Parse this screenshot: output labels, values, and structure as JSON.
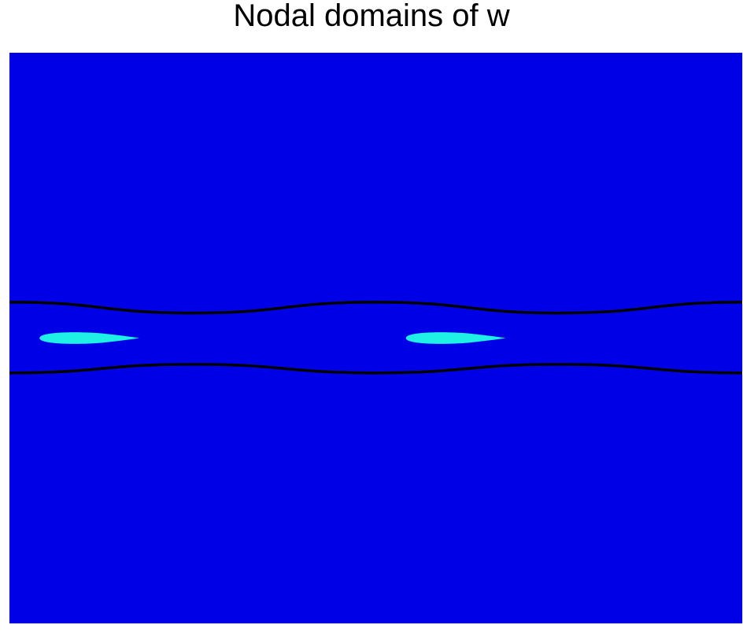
{
  "chart_data": {
    "type": "heatmap",
    "title": "Nodal domains of w",
    "xlabel": "",
    "ylabel": "",
    "axes_visible": false,
    "colors": {
      "background_domain": "#0000e6",
      "blob_domain": "#1ef0e6",
      "nodal_line": "#000000"
    },
    "nodal_lines": [
      {
        "name": "",
        "points": [
          [
            0,
            0.563
          ],
          [
            0.25,
            0.544
          ],
          [
            0.5,
            0.563
          ],
          [
            0.75,
            0.544
          ],
          [
            1,
            0.563
          ]
        ]
      },
      {
        "name": "",
        "points": [
          [
            0,
            0.439
          ],
          [
            0.25,
            0.454
          ],
          [
            0.5,
            0.439
          ],
          [
            0.75,
            0.454
          ],
          [
            1,
            0.439
          ]
        ]
      }
    ],
    "blobs": [
      {
        "cx": 0.109,
        "cy": 0.5,
        "rx": 0.068,
        "ry": 0.011
      },
      {
        "cx": 0.609,
        "cy": 0.5,
        "rx": 0.068,
        "ry": 0.011
      }
    ]
  }
}
